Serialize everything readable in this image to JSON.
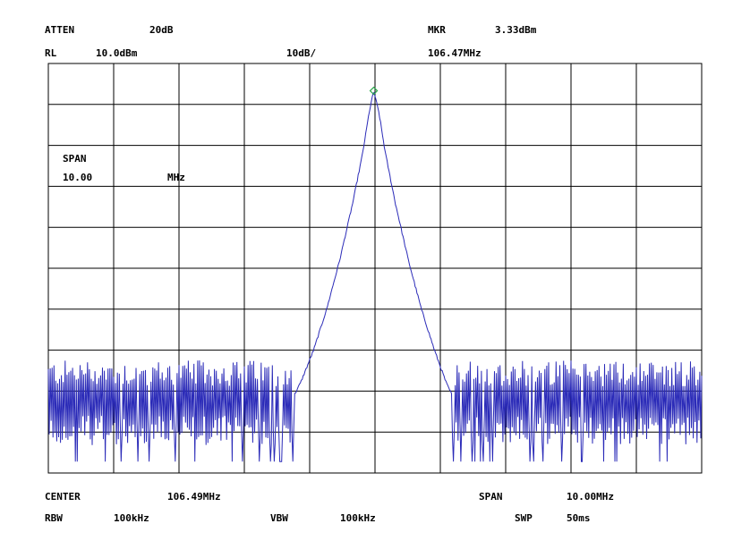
{
  "header": {
    "atten_label": "ATTEN",
    "atten_value": "20dB",
    "rl_label": "RL",
    "rl_value": "10.0dBm",
    "scale_value": "10dB/",
    "marker_label": "MKR",
    "marker_amplitude": "3.33dBm",
    "marker_frequency": "106.47MHz"
  },
  "overlay": {
    "span_label": "SPAN",
    "span_value": "10.00",
    "span_unit": "MHz"
  },
  "footer": {
    "center_label": "CENTER",
    "center_value": "106.49MHz",
    "span_label": "SPAN",
    "span_value": "10.00MHz",
    "rbw_label": "RBW",
    "rbw_value": "100kHz",
    "vbw_label": "VBW",
    "vbw_value": "100kHz",
    "swp_label": "SWP",
    "swp_value": "50ms"
  },
  "colors": {
    "trace": "#2b2bb8",
    "grid": "#000000",
    "marker": "#2aa84a"
  },
  "chart_data": {
    "type": "line",
    "x_unit": "MHz",
    "y_unit": "dBm",
    "xlim": [
      101.49,
      111.49
    ],
    "ylim": [
      -90,
      10
    ],
    "grid": true,
    "x_divisions": 10,
    "y_divisions": 10,
    "series": [
      {
        "peak_x": 106.47,
        "peak_y": 3.33,
        "noise_floor_y": -72,
        "noise_spread_y": 8,
        "shape": [
          [
            101.49,
            -72
          ],
          [
            105.22,
            -72
          ],
          [
            105.35,
            -68
          ],
          [
            105.55,
            -60
          ],
          [
            105.75,
            -50
          ],
          [
            105.95,
            -38
          ],
          [
            106.15,
            -24
          ],
          [
            106.3,
            -12
          ],
          [
            106.4,
            -2
          ],
          [
            106.47,
            3.33
          ],
          [
            106.55,
            -2
          ],
          [
            106.65,
            -12
          ],
          [
            106.8,
            -24
          ],
          [
            107.0,
            -38
          ],
          [
            107.2,
            -50
          ],
          [
            107.4,
            -60
          ],
          [
            107.58,
            -68
          ],
          [
            107.7,
            -72
          ],
          [
            111.49,
            -72
          ]
        ]
      }
    ],
    "marker": {
      "x": 106.47,
      "y": 3.33
    }
  }
}
